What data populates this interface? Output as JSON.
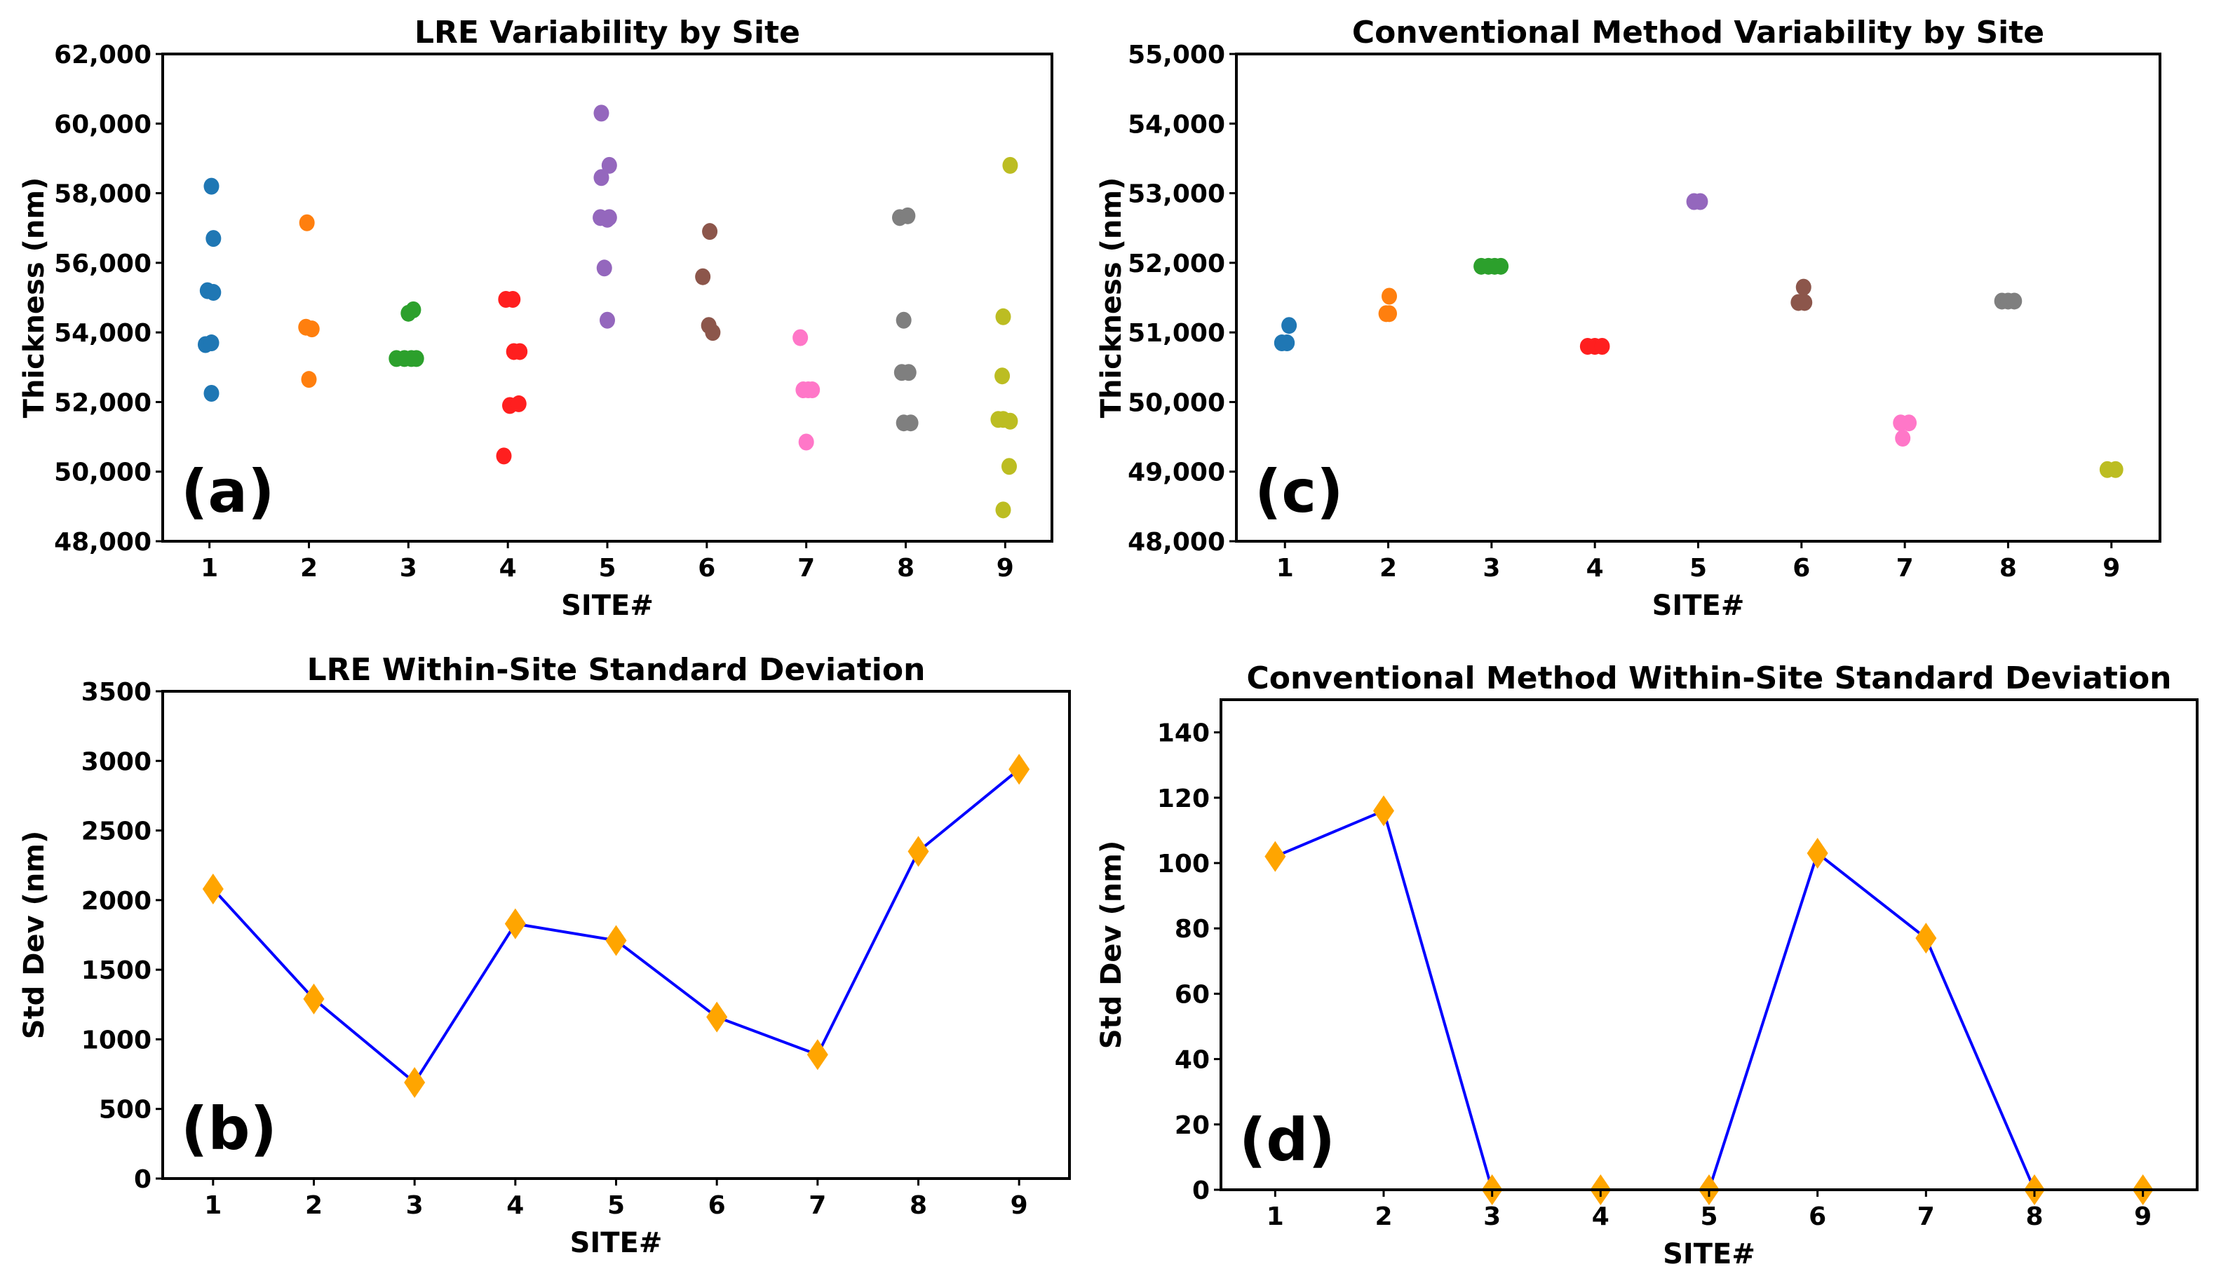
{
  "chart_data": [
    {
      "type": "scatter",
      "panel_label": "(a)",
      "title": "LRE Variability by Site",
      "xlabel": "SITE#",
      "ylabel": "Thickness (nm)",
      "xlim": [
        0.5,
        9.5
      ],
      "ylim": [
        48000,
        62000
      ],
      "xticks": [
        "1",
        "2",
        "3",
        "4",
        "5",
        "6",
        "7",
        "8",
        "9"
      ],
      "yticks": [
        "48,000",
        "50,000",
        "52,000",
        "54,000",
        "56,000",
        "58,000",
        "60,000",
        "62,000"
      ],
      "grid": false,
      "series": [
        {
          "name": "1",
          "color": "#1f77b4",
          "points": [
            [
              1.02,
              58200
            ],
            [
              1.04,
              56700
            ],
            [
              0.98,
              55200
            ],
            [
              1.04,
              55150
            ],
            [
              0.96,
              53650
            ],
            [
              1.02,
              53700
            ],
            [
              1.02,
              52250
            ]
          ]
        },
        {
          "name": "2",
          "color": "#ff7f0e",
          "points": [
            [
              1.98,
              57150
            ],
            [
              1.97,
              54150
            ],
            [
              2.03,
              54100
            ],
            [
              2.0,
              52650
            ]
          ]
        },
        {
          "name": "3",
          "color": "#2ca02c",
          "points": [
            [
              3.0,
              54550
            ],
            [
              3.05,
              54650
            ],
            [
              2.88,
              53250
            ],
            [
              2.96,
              53250
            ],
            [
              3.03,
              53250
            ],
            [
              3.08,
              53250
            ]
          ]
        },
        {
          "name": "4",
          "color": "#ff1f1f",
          "points": [
            [
              3.98,
              54950
            ],
            [
              4.05,
              54950
            ],
            [
              4.06,
              53450
            ],
            [
              4.12,
              53450
            ],
            [
              4.02,
              51900
            ],
            [
              4.11,
              51950
            ],
            [
              3.96,
              50450
            ]
          ]
        },
        {
          "name": "5",
          "color": "#9467bd",
          "points": [
            [
              4.94,
              60300
            ],
            [
              5.02,
              58800
            ],
            [
              4.94,
              58450
            ],
            [
              4.93,
              57300
            ],
            [
              5.0,
              57250
            ],
            [
              5.02,
              57300
            ],
            [
              4.97,
              55850
            ],
            [
              5.0,
              54350
            ]
          ]
        },
        {
          "name": "6",
          "color": "#8c564b",
          "points": [
            [
              6.03,
              56900
            ],
            [
              5.96,
              55600
            ],
            [
              6.02,
              54200
            ],
            [
              6.06,
              54000
            ]
          ]
        },
        {
          "name": "7",
          "color": "#ff77c8",
          "points": [
            [
              6.94,
              53850
            ],
            [
              6.97,
              52350
            ],
            [
              7.02,
              52350
            ],
            [
              7.06,
              52350
            ],
            [
              7.0,
              50850
            ]
          ]
        },
        {
          "name": "8",
          "color": "#7f7f7f",
          "points": [
            [
              7.94,
              57300
            ],
            [
              8.02,
              57350
            ],
            [
              7.98,
              54350
            ],
            [
              7.96,
              52850
            ],
            [
              8.03,
              52850
            ],
            [
              7.98,
              51400
            ],
            [
              8.05,
              51400
            ]
          ]
        },
        {
          "name": "9",
          "color": "#bcbd22",
          "points": [
            [
              9.05,
              58800
            ],
            [
              8.98,
              54450
            ],
            [
              8.97,
              52750
            ],
            [
              8.93,
              51500
            ],
            [
              8.98,
              51500
            ],
            [
              9.05,
              51450
            ],
            [
              9.04,
              50150
            ],
            [
              8.98,
              48900
            ]
          ]
        }
      ]
    },
    {
      "type": "scatter",
      "panel_label": "(c)",
      "title": "Conventional Method Variability by Site",
      "xlabel": "SITE#",
      "ylabel": "Thickness (nm)",
      "xlim": [
        0.5,
        9.5
      ],
      "ylim": [
        48000,
        55000
      ],
      "xticks": [
        "1",
        "2",
        "3",
        "4",
        "5",
        "6",
        "7",
        "8",
        "9"
      ],
      "yticks": [
        "48,000",
        "49,000",
        "50,000",
        "51,000",
        "52,000",
        "53,000",
        "54,000",
        "55,000"
      ],
      "grid": false,
      "series": [
        {
          "name": "1",
          "color": "#1f77b4",
          "points": [
            [
              1.04,
              51100
            ],
            [
              0.97,
              50850
            ],
            [
              1.02,
              50850
            ]
          ]
        },
        {
          "name": "2",
          "color": "#ff7f0e",
          "points": [
            [
              2.01,
              51520
            ],
            [
              1.98,
              51270
            ],
            [
              2.01,
              51270
            ]
          ]
        },
        {
          "name": "3",
          "color": "#2ca02c",
          "points": [
            [
              2.9,
              51950
            ],
            [
              2.97,
              51950
            ],
            [
              3.03,
              51950
            ],
            [
              3.09,
              51950
            ]
          ]
        },
        {
          "name": "4",
          "color": "#ff1f1f",
          "points": [
            [
              3.93,
              50800
            ],
            [
              4.0,
              50800
            ],
            [
              4.07,
              50800
            ]
          ]
        },
        {
          "name": "5",
          "color": "#9467bd",
          "points": [
            [
              4.96,
              52880
            ],
            [
              5.02,
              52880
            ]
          ]
        },
        {
          "name": "6",
          "color": "#8c564b",
          "points": [
            [
              6.02,
              51650
            ],
            [
              5.97,
              51430
            ],
            [
              6.03,
              51430
            ]
          ]
        },
        {
          "name": "7",
          "color": "#ff77c8",
          "points": [
            [
              6.96,
              49700
            ],
            [
              7.04,
              49700
            ],
            [
              6.98,
              49480
            ]
          ]
        },
        {
          "name": "8",
          "color": "#7f7f7f",
          "points": [
            [
              7.94,
              51450
            ],
            [
              8.0,
              51450
            ],
            [
              8.06,
              51450
            ]
          ]
        },
        {
          "name": "9",
          "color": "#bcbd22",
          "points": [
            [
              8.96,
              49030
            ],
            [
              9.04,
              49030
            ]
          ]
        }
      ]
    },
    {
      "type": "line",
      "panel_label": "(b)",
      "title": "LRE Within-Site Standard Deviation",
      "xlabel": "SITE#",
      "ylabel": "Std Dev (nm)",
      "xlim": [
        0.5,
        9.5
      ],
      "ylim": [
        0,
        3500
      ],
      "xticks": [
        "1",
        "2",
        "3",
        "4",
        "5",
        "6",
        "7",
        "8",
        "9"
      ],
      "yticks": [
        "0",
        "500",
        "1000",
        "1500",
        "2000",
        "2500",
        "3000",
        "3500"
      ],
      "grid": false,
      "line_color": "#0000ff",
      "marker_color": "#ffa500",
      "marker": "diamond",
      "x": [
        1,
        2,
        3,
        4,
        5,
        6,
        7,
        8,
        9
      ],
      "values": [
        2080,
        1290,
        690,
        1830,
        1710,
        1160,
        890,
        2350,
        2940
      ]
    },
    {
      "type": "line",
      "panel_label": "(d)",
      "title": "Conventional Method Within-Site Standard Deviation",
      "xlabel": "SITE#",
      "ylabel": "Std Dev (nm)",
      "xlim": [
        0.5,
        9.5
      ],
      "ylim": [
        0,
        150
      ],
      "xticks": [
        "1",
        "2",
        "3",
        "4",
        "5",
        "6",
        "7",
        "8",
        "9"
      ],
      "yticks": [
        "0",
        "20",
        "40",
        "60",
        "80",
        "100",
        "120",
        "140"
      ],
      "grid": false,
      "line_color": "#0000ff",
      "marker_color": "#ffa500",
      "marker": "diamond",
      "x": [
        1,
        2,
        3,
        4,
        5,
        6,
        7,
        8,
        9
      ],
      "values": [
        102,
        116,
        0,
        0,
        0,
        103,
        77,
        0,
        0
      ]
    }
  ]
}
